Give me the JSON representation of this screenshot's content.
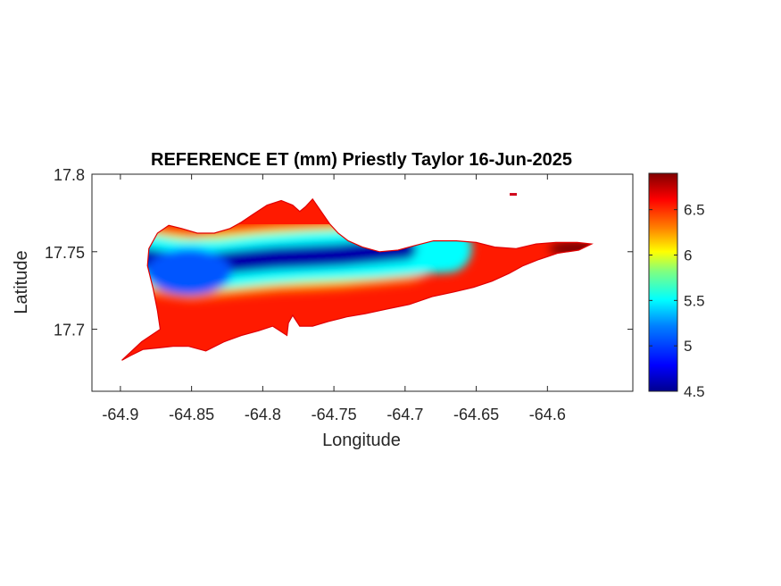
{
  "chart_data": {
    "type": "heatmap",
    "title": "REFERENCE ET (mm) Priestly Taylor 16-Jun-2025",
    "xlabel": "Longitude",
    "ylabel": "Latitude",
    "xlim": [
      -64.92,
      -64.54
    ],
    "ylim": [
      17.66,
      17.8
    ],
    "xticks": [
      -64.9,
      -64.85,
      -64.8,
      -64.75,
      -64.7,
      -64.65,
      -64.6
    ],
    "xtick_labels": [
      "-64.9",
      "-64.85",
      "-64.8",
      "-64.75",
      "-64.7",
      "-64.65",
      "-64.6"
    ],
    "yticks": [
      17.7,
      17.75,
      17.8
    ],
    "ytick_labels": [
      "17.7",
      "17.75",
      "17.8"
    ],
    "colorbar": {
      "colormap": "jet",
      "clim": [
        4.5,
        6.9
      ],
      "ticks": [
        4.5,
        5,
        5.5,
        6,
        6.5
      ],
      "tick_labels": [
        "4.5",
        "5",
        "5.5",
        "6",
        "6.5"
      ]
    },
    "island_outline": [
      [
        -64.899,
        17.68
      ],
      [
        -64.885,
        17.692
      ],
      [
        -64.872,
        17.7
      ],
      [
        -64.874,
        17.712
      ],
      [
        -64.877,
        17.726
      ],
      [
        -64.881,
        17.741
      ],
      [
        -64.88,
        17.752
      ],
      [
        -64.874,
        17.762
      ],
      [
        -64.866,
        17.767
      ],
      [
        -64.857,
        17.765
      ],
      [
        -64.846,
        17.762
      ],
      [
        -64.834,
        17.762
      ],
      [
        -64.823,
        17.765
      ],
      [
        -64.815,
        17.769
      ],
      [
        -64.807,
        17.774
      ],
      [
        -64.797,
        17.78
      ],
      [
        -64.787,
        17.783
      ],
      [
        -64.779,
        17.78
      ],
      [
        -64.774,
        17.776
      ],
      [
        -64.77,
        17.779
      ],
      [
        -64.765,
        17.784
      ],
      [
        -64.759,
        17.776
      ],
      [
        -64.753,
        17.768
      ],
      [
        -64.747,
        17.762
      ],
      [
        -64.74,
        17.757
      ],
      [
        -64.73,
        17.753
      ],
      [
        -64.718,
        17.75
      ],
      [
        -64.705,
        17.751
      ],
      [
        -64.693,
        17.754
      ],
      [
        -64.68,
        17.757
      ],
      [
        -64.664,
        17.757
      ],
      [
        -64.65,
        17.756
      ],
      [
        -64.637,
        17.753
      ],
      [
        -64.622,
        17.752
      ],
      [
        -64.608,
        17.755
      ],
      [
        -64.594,
        17.756
      ],
      [
        -64.579,
        17.756
      ],
      [
        -64.569,
        17.755
      ],
      [
        -64.578,
        17.751
      ],
      [
        -64.593,
        17.749
      ],
      [
        -64.606,
        17.745
      ],
      [
        -64.617,
        17.741
      ],
      [
        -64.627,
        17.736
      ],
      [
        -64.639,
        17.731
      ],
      [
        -64.652,
        17.727
      ],
      [
        -64.666,
        17.724
      ],
      [
        -64.681,
        17.721
      ],
      [
        -64.697,
        17.716
      ],
      [
        -64.713,
        17.713
      ],
      [
        -64.728,
        17.71
      ],
      [
        -64.741,
        17.708
      ],
      [
        -64.754,
        17.705
      ],
      [
        -64.765,
        17.702
      ],
      [
        -64.774,
        17.702
      ],
      [
        -64.779,
        17.709
      ],
      [
        -64.782,
        17.704
      ],
      [
        -64.783,
        17.696
      ],
      [
        -64.788,
        17.699
      ],
      [
        -64.793,
        17.702
      ],
      [
        -64.803,
        17.699
      ],
      [
        -64.815,
        17.696
      ],
      [
        -64.827,
        17.692
      ],
      [
        -64.84,
        17.686
      ],
      [
        -64.852,
        17.689
      ],
      [
        -64.863,
        17.689
      ],
      [
        -64.873,
        17.688
      ],
      [
        -64.884,
        17.687
      ],
      [
        -64.893,
        17.683
      ]
    ],
    "islet": [
      -64.624,
      17.787
    ],
    "value_bands": [
      {
        "lon": [
          -64.901,
          -64.876,
          -64.85,
          -64.815,
          -64.79,
          -64.765,
          -64.745,
          -64.722,
          -64.7
        ],
        "lat_center": [
          17.748,
          17.744,
          17.741,
          17.744,
          17.746,
          17.747,
          17.748,
          17.75,
          17.752
        ],
        "value": 4.6
      },
      {
        "lon": [
          -64.88,
          -64.86,
          -64.83,
          -64.8,
          -64.77,
          -64.745,
          -64.72,
          -64.69,
          -64.67
        ],
        "lat_center": [
          17.745,
          17.742,
          17.742,
          17.745,
          17.747,
          17.748,
          17.749,
          17.751,
          17.752
        ],
        "value": 5.3
      }
    ]
  }
}
